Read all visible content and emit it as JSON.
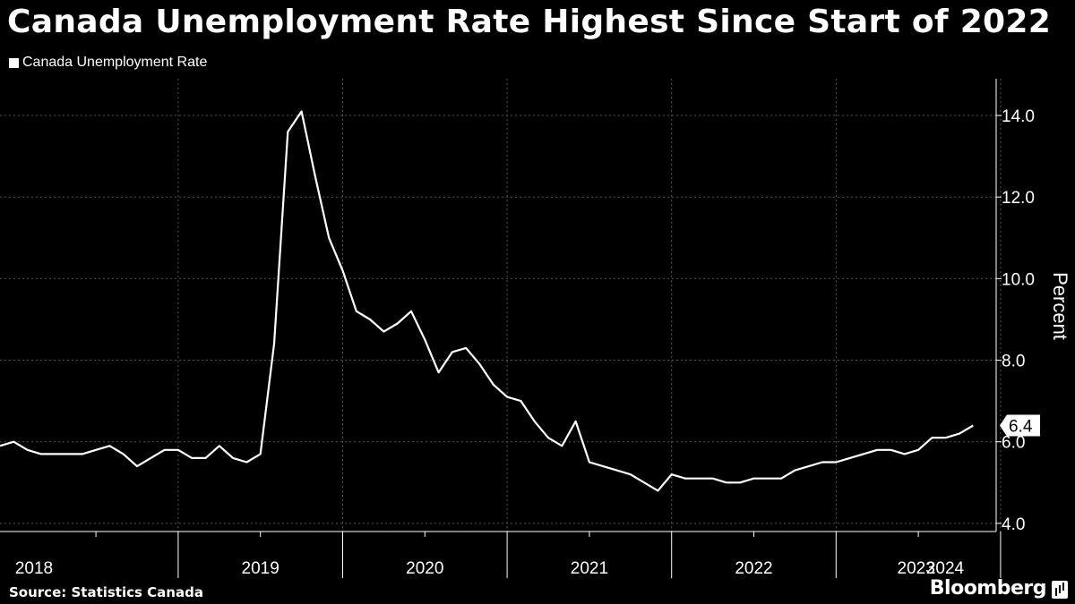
{
  "title": "Canada Unemployment Rate Highest Since Start of 2022",
  "source": "Source: Statistics Canada",
  "brand": "Bloomberg",
  "chart_data": {
    "type": "line",
    "title": "Canada Unemployment Rate Highest Since Start of 2022",
    "ylabel": "Percent",
    "ylim": [
      3.8,
      14.9
    ],
    "yticks": [
      4.0,
      6.0,
      8.0,
      10.0,
      12.0,
      14.0
    ],
    "ytick_labels": [
      "4.0",
      "6.0",
      "8.0",
      "10.0",
      "12.0",
      "14.0"
    ],
    "x_start": "2017-12",
    "x_labels": [
      "2018",
      "2019",
      "2020",
      "2021",
      "2022",
      "2023",
      "2024"
    ],
    "legend_position": "top-left",
    "grid": true,
    "last_value_label": "6.4",
    "colors": {
      "background": "#000000",
      "line": "#ffffff",
      "grid": "#555555"
    },
    "series": [
      {
        "name": "Canada Unemployment Rate",
        "values": [
          5.9,
          6.0,
          5.8,
          5.7,
          5.7,
          5.7,
          5.7,
          5.8,
          5.9,
          5.7,
          5.4,
          5.6,
          5.8,
          5.8,
          5.6,
          5.6,
          5.9,
          5.6,
          5.5,
          5.7,
          8.4,
          13.6,
          14.1,
          12.5,
          11.0,
          10.2,
          9.2,
          9.0,
          8.7,
          8.9,
          9.2,
          8.5,
          7.7,
          8.2,
          8.3,
          7.9,
          7.4,
          7.1,
          7.0,
          6.5,
          6.1,
          5.9,
          6.5,
          5.5,
          5.4,
          5.3,
          5.2,
          5.0,
          4.8,
          5.2,
          5.1,
          5.1,
          5.1,
          5.0,
          5.0,
          5.1,
          5.1,
          5.1,
          5.3,
          5.4,
          5.5,
          5.5,
          5.6,
          5.7,
          5.8,
          5.8,
          5.7,
          5.8,
          6.1,
          6.1,
          6.2,
          6.4
        ]
      }
    ]
  }
}
